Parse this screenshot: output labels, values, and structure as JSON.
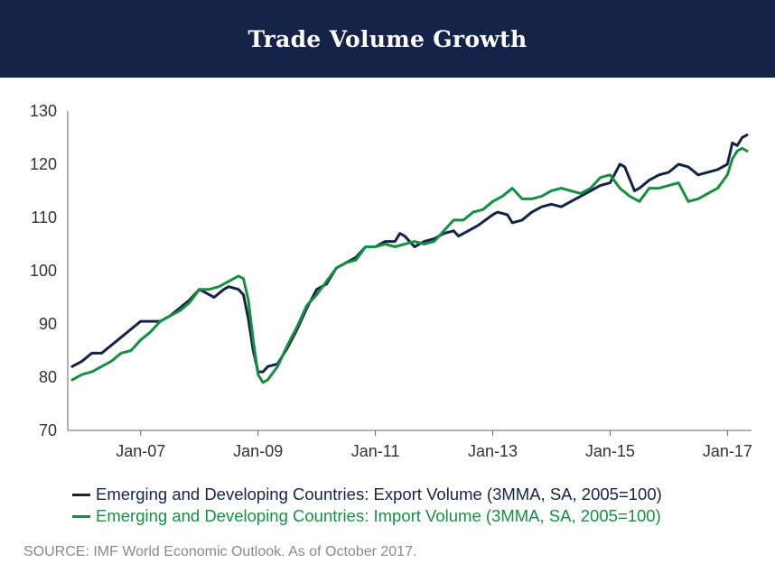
{
  "chart_data": {
    "type": "line",
    "title": "Trade Volume Growth",
    "ylim": [
      70,
      130
    ],
    "yticks": [
      "70",
      "80",
      "90",
      "100",
      "110",
      "120",
      "130"
    ],
    "xticks": [
      {
        "label": "Jan-07",
        "x": "2007-01"
      },
      {
        "label": "Jan-09",
        "x": "2009-01"
      },
      {
        "label": "Jan-11",
        "x": "2011-01"
      },
      {
        "label": "Jan-13",
        "x": "2013-01"
      },
      {
        "label": "Jan-15",
        "x": "2015-01"
      },
      {
        "label": "Jan-17",
        "x": "2017-01"
      }
    ],
    "x_range": [
      "2005-11",
      "2017-05"
    ],
    "grid": false,
    "legend_position": "bottom",
    "series": [
      {
        "name": "Emerging and Developing Countries: Export Volume (3MMA, SA, 2005=100)",
        "color": "#142347",
        "points": [
          [
            "2005-11",
            82.0
          ],
          [
            "2006-01",
            83.0
          ],
          [
            "2006-03",
            84.5
          ],
          [
            "2006-05",
            84.5
          ],
          [
            "2006-07",
            86.0
          ],
          [
            "2006-09",
            87.5
          ],
          [
            "2006-11",
            89.0
          ],
          [
            "2007-01",
            90.5
          ],
          [
            "2007-03",
            90.5
          ],
          [
            "2007-05",
            90.5
          ],
          [
            "2007-07",
            91.5
          ],
          [
            "2007-09",
            93.0
          ],
          [
            "2007-11",
            94.5
          ],
          [
            "2008-01",
            96.5
          ],
          [
            "2008-03",
            95.5
          ],
          [
            "2008-04",
            95.0
          ],
          [
            "2008-06",
            96.5
          ],
          [
            "2008-07",
            97.0
          ],
          [
            "2008-09",
            96.5
          ],
          [
            "2008-10",
            95.5
          ],
          [
            "2008-11",
            91.0
          ],
          [
            "2008-12",
            85.0
          ],
          [
            "2009-01",
            81.0
          ],
          [
            "2009-02",
            81.0
          ],
          [
            "2009-03",
            82.0
          ],
          [
            "2009-05",
            82.5
          ],
          [
            "2009-07",
            85.5
          ],
          [
            "2009-09",
            89.0
          ],
          [
            "2009-11",
            93.0
          ],
          [
            "2010-01",
            96.5
          ],
          [
            "2010-03",
            97.5
          ],
          [
            "2010-05",
            100.5
          ],
          [
            "2010-07",
            101.5
          ],
          [
            "2010-09",
            102.5
          ],
          [
            "2010-11",
            104.5
          ],
          [
            "2011-01",
            104.5
          ],
          [
            "2011-03",
            105.5
          ],
          [
            "2011-05",
            105.5
          ],
          [
            "2011-06",
            107.0
          ],
          [
            "2011-07",
            106.5
          ],
          [
            "2011-09",
            104.5
          ],
          [
            "2011-11",
            105.5
          ],
          [
            "2012-01",
            106.0
          ],
          [
            "2012-03",
            107.0
          ],
          [
            "2012-05",
            107.5
          ],
          [
            "2012-06",
            106.5
          ],
          [
            "2012-08",
            107.5
          ],
          [
            "2012-10",
            108.5
          ],
          [
            "2013-01",
            110.5
          ],
          [
            "2013-02",
            111.0
          ],
          [
            "2013-04",
            110.5
          ],
          [
            "2013-05",
            109.0
          ],
          [
            "2013-07",
            109.5
          ],
          [
            "2013-09",
            111.0
          ],
          [
            "2013-11",
            112.0
          ],
          [
            "2014-01",
            112.5
          ],
          [
            "2014-03",
            112.0
          ],
          [
            "2014-05",
            113.0
          ],
          [
            "2014-07",
            114.0
          ],
          [
            "2014-09",
            115.0
          ],
          [
            "2014-11",
            116.0
          ],
          [
            "2015-01",
            116.5
          ],
          [
            "2015-03",
            120.0
          ],
          [
            "2015-04",
            119.5
          ],
          [
            "2015-06",
            115.0
          ],
          [
            "2015-07",
            115.5
          ],
          [
            "2015-09",
            117.0
          ],
          [
            "2015-11",
            118.0
          ],
          [
            "2016-01",
            118.5
          ],
          [
            "2016-03",
            120.0
          ],
          [
            "2016-05",
            119.5
          ],
          [
            "2016-07",
            118.0
          ],
          [
            "2016-09",
            118.5
          ],
          [
            "2016-11",
            119.0
          ],
          [
            "2017-01",
            120.0
          ],
          [
            "2017-02",
            124.0
          ],
          [
            "2017-03",
            123.5
          ],
          [
            "2017-04",
            125.0
          ],
          [
            "2017-05",
            125.5
          ]
        ]
      },
      {
        "name": "Emerging and Developing Countries: Import Volume (3MMA, SA, 2005=100)",
        "color": "#159043",
        "points": [
          [
            "2005-11",
            79.5
          ],
          [
            "2006-01",
            80.5
          ],
          [
            "2006-03",
            81.0
          ],
          [
            "2006-05",
            82.0
          ],
          [
            "2006-07",
            83.0
          ],
          [
            "2006-09",
            84.5
          ],
          [
            "2006-11",
            85.0
          ],
          [
            "2007-01",
            87.0
          ],
          [
            "2007-03",
            88.5
          ],
          [
            "2007-05",
            90.5
          ],
          [
            "2007-07",
            91.5
          ],
          [
            "2007-09",
            92.5
          ],
          [
            "2007-11",
            94.0
          ],
          [
            "2008-01",
            96.5
          ],
          [
            "2008-03",
            96.5
          ],
          [
            "2008-05",
            97.0
          ],
          [
            "2008-07",
            98.0
          ],
          [
            "2008-09",
            99.0
          ],
          [
            "2008-10",
            98.5
          ],
          [
            "2008-11",
            94.5
          ],
          [
            "2008-12",
            87.0
          ],
          [
            "2009-01",
            80.5
          ],
          [
            "2009-02",
            79.0
          ],
          [
            "2009-03",
            79.5
          ],
          [
            "2009-05",
            82.0
          ],
          [
            "2009-07",
            86.0
          ],
          [
            "2009-09",
            89.5
          ],
          [
            "2009-11",
            93.5
          ],
          [
            "2010-01",
            95.5
          ],
          [
            "2010-03",
            98.0
          ],
          [
            "2010-05",
            100.5
          ],
          [
            "2010-07",
            101.5
          ],
          [
            "2010-09",
            102.0
          ],
          [
            "2010-11",
            104.5
          ],
          [
            "2011-01",
            104.5
          ],
          [
            "2011-03",
            105.0
          ],
          [
            "2011-05",
            104.5
          ],
          [
            "2011-07",
            105.0
          ],
          [
            "2011-09",
            105.5
          ],
          [
            "2011-11",
            105.0
          ],
          [
            "2012-01",
            105.5
          ],
          [
            "2012-03",
            107.5
          ],
          [
            "2012-05",
            109.5
          ],
          [
            "2012-07",
            109.5
          ],
          [
            "2012-09",
            111.0
          ],
          [
            "2012-11",
            111.5
          ],
          [
            "2013-01",
            113.0
          ],
          [
            "2013-03",
            114.0
          ],
          [
            "2013-05",
            115.5
          ],
          [
            "2013-07",
            113.5
          ],
          [
            "2013-09",
            113.5
          ],
          [
            "2013-11",
            114.0
          ],
          [
            "2014-01",
            115.0
          ],
          [
            "2014-03",
            115.5
          ],
          [
            "2014-05",
            115.0
          ],
          [
            "2014-07",
            114.5
          ],
          [
            "2014-09",
            115.5
          ],
          [
            "2014-11",
            117.5
          ],
          [
            "2015-01",
            118.0
          ],
          [
            "2015-03",
            115.5
          ],
          [
            "2015-05",
            114.0
          ],
          [
            "2015-07",
            113.0
          ],
          [
            "2015-09",
            115.5
          ],
          [
            "2015-11",
            115.5
          ],
          [
            "2016-01",
            116.0
          ],
          [
            "2016-03",
            116.5
          ],
          [
            "2016-05",
            113.0
          ],
          [
            "2016-07",
            113.5
          ],
          [
            "2016-09",
            114.5
          ],
          [
            "2016-11",
            115.5
          ],
          [
            "2017-01",
            118.0
          ],
          [
            "2017-02",
            121.0
          ],
          [
            "2017-03",
            122.5
          ],
          [
            "2017-04",
            123.0
          ],
          [
            "2017-05",
            122.5
          ]
        ]
      }
    ]
  },
  "source_text": "SOURCE: IMF World Economic Outlook. As of October 2017."
}
